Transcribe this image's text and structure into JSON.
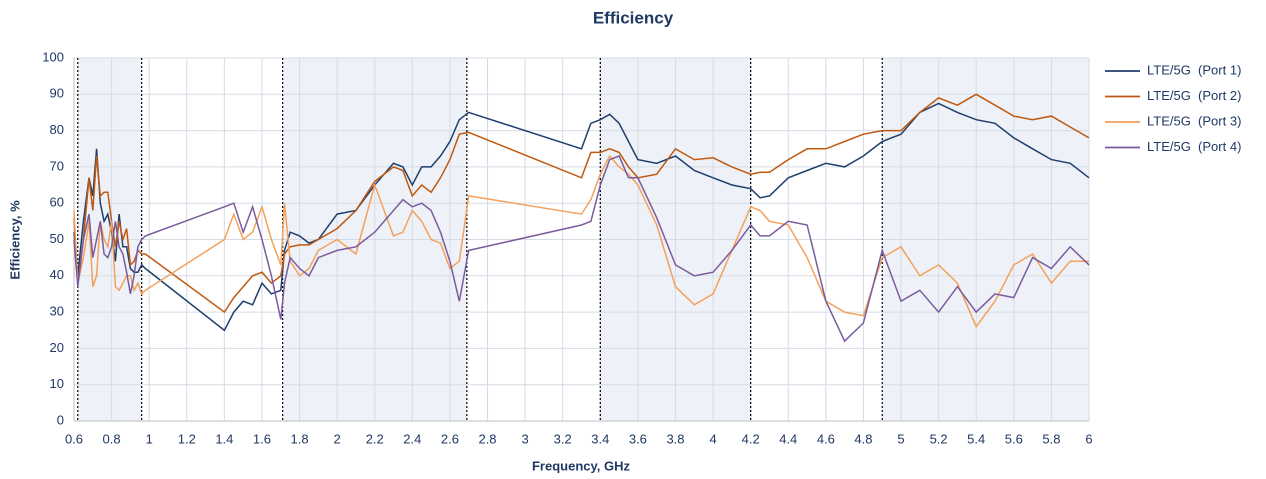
{
  "chart_data": {
    "type": "line",
    "title": "Efficiency",
    "xlabel": "Frequency, GHz",
    "ylabel": "Efficiency, %",
    "xlim": [
      0.6,
      6
    ],
    "ylim": [
      0,
      100
    ],
    "xticks": [
      0.6,
      0.8,
      1,
      1.2,
      1.4,
      1.6,
      1.8,
      2,
      2.2,
      2.4,
      2.6,
      2.8,
      3,
      3.2,
      3.4,
      3.6,
      3.8,
      4,
      4.2,
      4.4,
      4.6,
      4.8,
      5,
      5.2,
      5.4,
      5.6,
      5.8,
      6
    ],
    "yticks": [
      0,
      10,
      20,
      30,
      40,
      50,
      60,
      70,
      80,
      90,
      100
    ],
    "grid": true,
    "legend": "right",
    "markers": [
      0.62,
      0.96,
      1.71,
      2.69,
      3.4,
      4.2,
      4.9
    ],
    "x": [
      0.6,
      0.62,
      0.65,
      0.68,
      0.7,
      0.72,
      0.74,
      0.76,
      0.78,
      0.8,
      0.82,
      0.84,
      0.86,
      0.88,
      0.9,
      0.92,
      0.94,
      0.96,
      0.98,
      1.4,
      1.45,
      1.5,
      1.55,
      1.6,
      1.65,
      1.7,
      1.72,
      1.75,
      1.8,
      1.85,
      1.9,
      2.0,
      2.1,
      2.2,
      2.3,
      2.35,
      2.4,
      2.45,
      2.5,
      2.55,
      2.6,
      2.65,
      2.7,
      3.3,
      3.35,
      3.4,
      3.45,
      3.5,
      3.55,
      3.6,
      3.7,
      3.8,
      3.9,
      4.0,
      4.1,
      4.2,
      4.25,
      4.3,
      4.4,
      4.5,
      4.6,
      4.7,
      4.8,
      4.9,
      5.0,
      5.1,
      5.2,
      5.3,
      5.4,
      5.5,
      5.6,
      5.7,
      5.8,
      5.9,
      6.0
    ],
    "series": [
      {
        "name": "LTE/5G  (Port 1)",
        "color": "#1f3f6e",
        "values": [
          52,
          40,
          55,
          67,
          62,
          75,
          60,
          55,
          57,
          52,
          44,
          57,
          48,
          48,
          42,
          41,
          41,
          43,
          42,
          25,
          30,
          33,
          32,
          38,
          35,
          36,
          47,
          52,
          51,
          49,
          50,
          57,
          58,
          65,
          71,
          70,
          65,
          70,
          70,
          73,
          77,
          83,
          85,
          75,
          82,
          83,
          84.5,
          82,
          77,
          72,
          71,
          73,
          69,
          67,
          65,
          64,
          61.5,
          62,
          67,
          69,
          71,
          70,
          73,
          77,
          79,
          85,
          87.5,
          85,
          83,
          82,
          78,
          75,
          72,
          71,
          67
        ]
      },
      {
        "name": "LTE/5G  (Port 2)",
        "color": "#c0590f",
        "values": [
          56,
          38,
          50,
          67,
          58,
          73,
          62,
          63,
          63,
          55,
          48,
          55,
          50,
          53,
          43,
          44,
          47,
          46,
          46,
          30,
          34,
          37,
          40,
          41,
          38,
          40,
          46,
          48,
          48.5,
          48.5,
          50,
          53,
          58,
          66,
          70,
          69,
          62,
          65,
          63,
          67,
          72,
          79,
          79.5,
          67,
          74,
          74,
          75,
          74,
          70,
          67,
          68,
          75,
          72,
          72.5,
          70,
          68,
          68.5,
          68.5,
          72,
          75,
          75,
          77,
          79,
          80,
          80,
          85,
          89,
          87,
          90,
          87,
          84,
          83,
          84,
          81,
          78
        ]
      },
      {
        "name": "LTE/5G  (Port 3)",
        "color": "#f4a15b",
        "values": [
          58,
          38,
          45,
          55,
          37,
          40,
          55,
          50,
          48,
          55,
          37,
          36,
          38,
          40,
          40,
          36,
          38,
          35,
          36,
          50,
          57,
          50,
          52,
          59,
          50,
          43,
          60,
          44,
          40,
          42,
          47,
          50,
          46,
          65,
          51,
          52,
          58,
          55,
          50,
          49,
          42,
          44,
          62,
          57,
          61,
          68,
          73,
          70,
          68,
          65,
          54,
          37,
          32,
          35,
          47,
          59,
          58,
          55,
          54,
          45,
          33,
          30,
          29,
          45,
          48,
          40,
          43,
          38,
          26,
          33,
          43,
          46,
          38,
          44,
          44
        ]
      },
      {
        "name": "LTE/5G  (Port 4)",
        "color": "#7a5c9e",
        "values": [
          50,
          37,
          50,
          57,
          45,
          50,
          55,
          46,
          45,
          48,
          55,
          48,
          46,
          41,
          35,
          40,
          48,
          50,
          51,
          59,
          60,
          52,
          59,
          50,
          40,
          28,
          38,
          45,
          42,
          40,
          45,
          47,
          48,
          52,
          58,
          61,
          59,
          60,
          58,
          52,
          44,
          33,
          47,
          54,
          55,
          65,
          72,
          73,
          67,
          67,
          56,
          43,
          40,
          41,
          47,
          54,
          51,
          51,
          55,
          54,
          33,
          22,
          27,
          47,
          33,
          36,
          30,
          37,
          30,
          35,
          34,
          45,
          42,
          48,
          43
        ]
      }
    ]
  }
}
